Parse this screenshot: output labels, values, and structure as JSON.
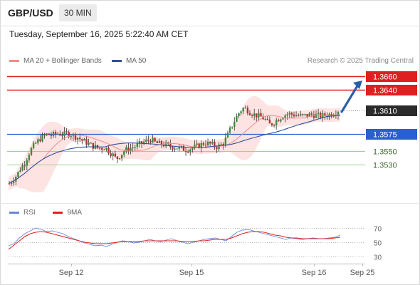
{
  "header": {
    "symbol": "GBP/USD",
    "timeframe": "30 MIN"
  },
  "datetime": "Tuesday, September 16, 2025 5:22:40 AM CET",
  "legend": {
    "ma20_label": "MA 20 + Bollinger Bands",
    "ma50_label": "MA 50",
    "copyright": "Research © 2025 Trading Central"
  },
  "rsi_legend": {
    "rsi_label": "RSI",
    "ma_label": "9MA"
  },
  "colors": {
    "resistance": "#e02020",
    "support_main": "#2a5fd0",
    "support_minor": "#9fcf8f",
    "band_fill": "#fde0de",
    "ma20": "#f08c8c",
    "ma50": "#34509c",
    "candle_up": "#3c8a3c",
    "candle_down": "#b03232",
    "arrow": "#2a5fa8",
    "current_price": "#2b2b2b",
    "rsi": "#6a86d8",
    "rsi_ma": "#e02020"
  },
  "chart_data": [
    {
      "type": "candlestick",
      "title": "GBP/USD",
      "y_range": [
        1.3485,
        1.3675
      ],
      "x_ticks": [
        "Sep 12",
        "Sep 15",
        "Sep 16",
        "Sep 25"
      ],
      "levels": [
        {
          "value": 1.366,
          "label": "1.3660",
          "kind": "resistance"
        },
        {
          "value": 1.364,
          "label": "1.3640",
          "kind": "resistance"
        },
        {
          "value": 1.361,
          "label": "1.3610",
          "kind": "current"
        },
        {
          "value": 1.3575,
          "label": "1.3575",
          "kind": "support"
        },
        {
          "value": 1.355,
          "label": "1.3550",
          "kind": "support-minor"
        },
        {
          "value": 1.353,
          "label": "1.3530",
          "kind": "support-minor"
        }
      ],
      "projection": {
        "from": 1.361,
        "to": 1.3655,
        "direction": "up"
      },
      "price_path": [
        1.3502,
        1.3508,
        1.3515,
        1.3525,
        1.3532,
        1.3545,
        1.3555,
        1.3562,
        1.3568,
        1.3572,
        1.3575,
        1.3573,
        1.3575,
        1.3576,
        1.3574,
        1.3576,
        1.3575,
        1.3572,
        1.357,
        1.3566,
        1.3563,
        1.356,
        1.3557,
        1.3555,
        1.3554,
        1.3556,
        1.355,
        1.3545,
        1.3538,
        1.3544,
        1.355,
        1.3553,
        1.3555,
        1.3557,
        1.356,
        1.3563,
        1.3565,
        1.3567,
        1.3563,
        1.3561,
        1.356,
        1.3559,
        1.3557,
        1.3556,
        1.3555,
        1.3554,
        1.3552,
        1.3553,
        1.3555,
        1.3557,
        1.3559,
        1.3562,
        1.3561,
        1.356,
        1.3556,
        1.3558,
        1.3562,
        1.3572,
        1.3585,
        1.3596,
        1.3606,
        1.3613,
        1.3612,
        1.3607,
        1.3604,
        1.3602,
        1.36,
        1.3596,
        1.3589,
        1.3591,
        1.3596,
        1.36,
        1.3603,
        1.3605,
        1.3604,
        1.3603,
        1.3602,
        1.3602,
        1.3603,
        1.3604,
        1.3603,
        1.3602,
        1.3602,
        1.3603,
        1.3604,
        1.3606,
        1.361
      ]
    },
    {
      "type": "line",
      "title": "RSI",
      "y_ticks": [
        70,
        50,
        30
      ],
      "y_range": [
        22,
        78
      ],
      "series": [
        {
          "name": "RSI",
          "values": [
            45,
            48,
            56,
            62,
            66,
            70,
            68,
            65,
            66,
            64,
            62,
            58,
            55,
            52,
            49,
            47,
            45,
            46,
            44,
            47,
            50,
            52,
            51,
            49,
            50,
            52,
            54,
            52,
            51,
            53,
            55,
            52,
            50,
            48,
            50,
            52,
            54,
            55,
            56,
            54,
            52,
            58,
            64,
            67,
            68,
            66,
            64,
            62,
            60,
            58,
            56,
            54,
            56,
            55,
            54,
            55,
            56,
            55,
            55,
            56,
            57,
            60
          ]
        },
        {
          "name": "9MA",
          "values": [
            40,
            46,
            52,
            58,
            62,
            64,
            65,
            64,
            62,
            60,
            58,
            56,
            54,
            52,
            50,
            49,
            48,
            48,
            48,
            49,
            50,
            51,
            51,
            51,
            51,
            52,
            52,
            52,
            52,
            52,
            52,
            52,
            51,
            51,
            51,
            52,
            52,
            53,
            54,
            54,
            54,
            56,
            59,
            62,
            64,
            65,
            65,
            64,
            62,
            60,
            59,
            57,
            56,
            56,
            55,
            55,
            55,
            55,
            55,
            55,
            56,
            57
          ]
        }
      ]
    }
  ]
}
